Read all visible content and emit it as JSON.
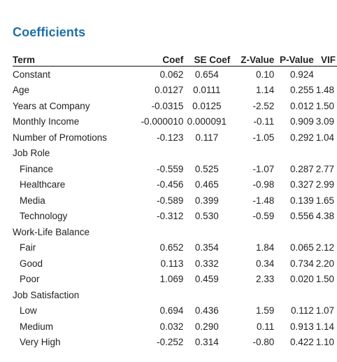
{
  "title": "Coefficients",
  "headers": {
    "term": "Term",
    "coef": "Coef",
    "se_coef": "SE Coef",
    "z_value": "Z-Value",
    "p_value": "P-Value",
    "vif": "VIF"
  },
  "rows": [
    {
      "term": "Constant",
      "indent": false,
      "coef": "0.062",
      "se": "0.654",
      "z": "0.10",
      "p": "0.924",
      "vif": ""
    },
    {
      "term": "Age",
      "indent": false,
      "coef": "0.0127",
      "se": "0.0111",
      "z": "1.14",
      "p": "0.255",
      "vif": "1.48"
    },
    {
      "term": "Years at Company",
      "indent": false,
      "coef": "-0.0315",
      "se": "0.0125",
      "z": "-2.52",
      "p": "0.012",
      "vif": "1.50"
    },
    {
      "term": "Monthly Income",
      "indent": false,
      "coef": "-0.000010",
      "se": "0.000091",
      "z": "-0.11",
      "p": "0.909",
      "vif": "3.09"
    },
    {
      "term": "Number of Promotions",
      "indent": false,
      "coef": "-0.123",
      "se": "0.117",
      "z": "-1.05",
      "p": "0.292",
      "vif": "1.04"
    },
    {
      "term": "Job Role",
      "indent": false,
      "coef": "",
      "se": "",
      "z": "",
      "p": "",
      "vif": ""
    },
    {
      "term": "Finance",
      "indent": true,
      "coef": "-0.559",
      "se": "0.525",
      "z": "-1.07",
      "p": "0.287",
      "vif": "2.77"
    },
    {
      "term": "Healthcare",
      "indent": true,
      "coef": "-0.456",
      "se": "0.465",
      "z": "-0.98",
      "p": "0.327",
      "vif": "2.99"
    },
    {
      "term": "Media",
      "indent": true,
      "coef": "-0.589",
      "se": "0.399",
      "z": "-1.48",
      "p": "0.139",
      "vif": "1.65"
    },
    {
      "term": "Technology",
      "indent": true,
      "coef": "-0.312",
      "se": "0.530",
      "z": "-0.59",
      "p": "0.556",
      "vif": "4.38"
    },
    {
      "term": "Work-Life Balance",
      "indent": false,
      "coef": "",
      "se": "",
      "z": "",
      "p": "",
      "vif": ""
    },
    {
      "term": "Fair",
      "indent": true,
      "coef": "0.652",
      "se": "0.354",
      "z": "1.84",
      "p": "0.065",
      "vif": "2.12"
    },
    {
      "term": "Good",
      "indent": true,
      "coef": "0.113",
      "se": "0.332",
      "z": "0.34",
      "p": "0.734",
      "vif": "2.20"
    },
    {
      "term": "Poor",
      "indent": true,
      "coef": "1.069",
      "se": "0.459",
      "z": "2.33",
      "p": "0.020",
      "vif": "1.50"
    },
    {
      "term": "Job Satisfaction",
      "indent": false,
      "coef": "",
      "se": "",
      "z": "",
      "p": "",
      "vif": ""
    },
    {
      "term": "Low",
      "indent": true,
      "coef": "0.694",
      "se": "0.436",
      "z": "1.59",
      "p": "0.112",
      "vif": "1.07"
    },
    {
      "term": "Medium",
      "indent": true,
      "coef": "0.032",
      "se": "0.290",
      "z": "0.11",
      "p": "0.913",
      "vif": "1.14"
    },
    {
      "term": "Very High",
      "indent": true,
      "coef": "-0.252",
      "se": "0.314",
      "z": "-0.80",
      "p": "0.422",
      "vif": "1.10"
    }
  ]
}
